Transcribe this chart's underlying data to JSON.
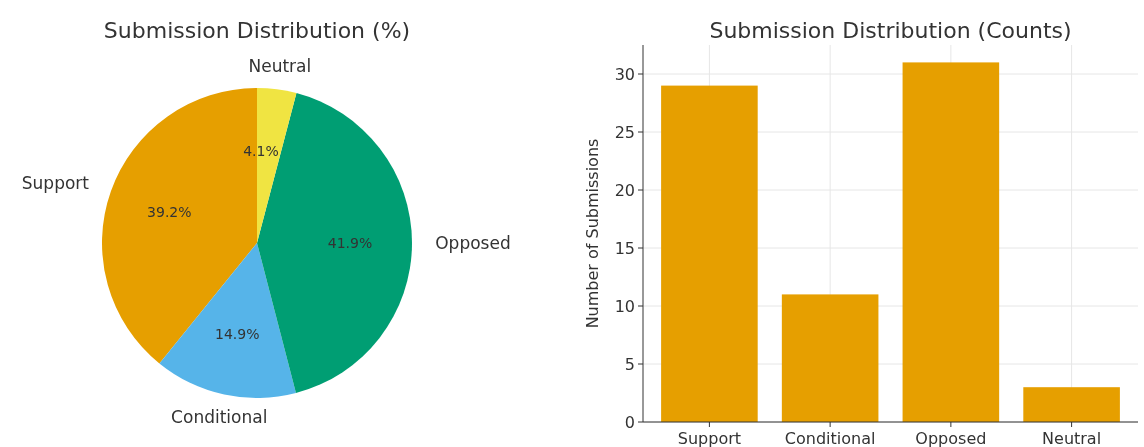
{
  "chart_data": [
    {
      "type": "pie",
      "title": "Submission Distribution (%)",
      "categories": [
        "Support",
        "Conditional",
        "Opposed",
        "Neutral"
      ],
      "values": [
        39.2,
        14.9,
        41.9,
        4.1
      ],
      "colors": [
        "#e69f00",
        "#56b4e9",
        "#009e73",
        "#f0e442"
      ],
      "value_labels": [
        "39.2%",
        "14.9%",
        "41.9%",
        "4.1%"
      ]
    },
    {
      "type": "bar",
      "title": "Submission Distribution (Counts)",
      "ylabel": "Number of Submissions",
      "categories": [
        "Support",
        "Conditional",
        "Opposed",
        "Neutral"
      ],
      "values": [
        29,
        11,
        31,
        3
      ],
      "color": "#e69f00",
      "ylim": [
        0,
        32.5
      ],
      "yticks": [
        0,
        5,
        10,
        15,
        20,
        25,
        30
      ],
      "grid": true
    }
  ]
}
